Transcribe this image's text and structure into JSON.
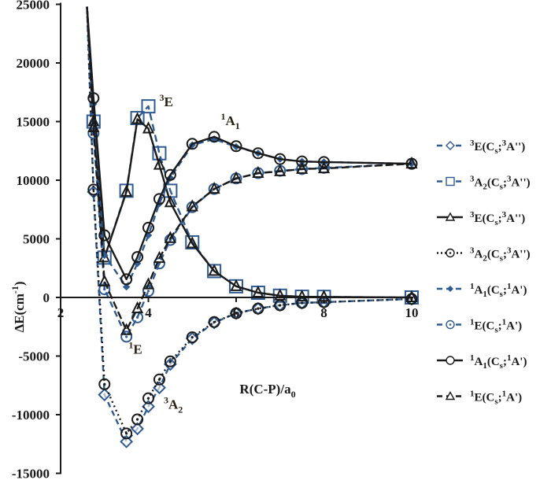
{
  "chart_data": {
    "type": "line",
    "title": "",
    "xlabel": "R(C-P)/a0",
    "ylabel": "ΔE(cm-1)",
    "xlim": [
      2,
      10
    ],
    "ylim": [
      -15000,
      25000
    ],
    "x_ticks": [
      2,
      4,
      6,
      8,
      10
    ],
    "y_ticks": [
      25000,
      20000,
      15000,
      10000,
      5000,
      0,
      -5000,
      -10000,
      -15000
    ],
    "grid": false,
    "legend_position": "right",
    "annotations": [
      {
        "text": "3E",
        "sup": "3",
        "main": "E",
        "sub": "",
        "x": 4.25,
        "y": 16300
      },
      {
        "text": "1A1",
        "sup": "1",
        "main": "A",
        "sub": "1",
        "x": 5.65,
        "y": 14700
      },
      {
        "text": "1E",
        "sup": "1",
        "main": "E",
        "sub": "",
        "x": 3.55,
        "y": -4800
      },
      {
        "text": "3A2",
        "sup": "3",
        "main": "A",
        "sub": "2",
        "x": 4.35,
        "y": -9500
      }
    ],
    "series": [
      {
        "name": "3E(Cs;3A'')",
        "label_sup": "3",
        "label_main": "E",
        "label_sub": "",
        "sym": "Cs;",
        "sym_sup": "3",
        "sym_rest": "A'')",
        "color": "#2f5b93",
        "dash": "7,5",
        "marker": "diamond-open",
        "x": [
          2.6,
          2.75,
          3.0,
          3.5,
          3.75,
          4.0,
          4.25,
          4.5,
          5.0,
          5.5,
          6.0,
          6.5,
          7.0,
          7.5,
          8.0,
          10.0
        ],
        "y": [
          24800,
          9000,
          -8300,
          -12300,
          -11200,
          -9300,
          -7700,
          -5700,
          -3500,
          -2150,
          -1350,
          -950,
          -650,
          -470,
          -400,
          -130
        ]
      },
      {
        "name": "3A2(Cs;3A'')",
        "label_sup": "3",
        "label_main": "A",
        "label_sub": "2",
        "sym": "Cs;",
        "sym_sup": "3",
        "sym_rest": "A'')",
        "color": "#2f5b93",
        "dash": "9,5",
        "marker": "square-open",
        "x": [
          2.6,
          2.75,
          3.0,
          3.5,
          3.75,
          4.0,
          4.25,
          4.5,
          5.0,
          5.5,
          6.0,
          6.5,
          7.0,
          7.5,
          8.0,
          10.0
        ],
        "y": [
          24800,
          15000,
          3400,
          9100,
          15300,
          16300,
          12300,
          9100,
          4700,
          2250,
          950,
          400,
          150,
          60,
          50,
          0
        ]
      },
      {
        "name": "3E(Cs;3A'')",
        "label_sup": "3",
        "label_main": "E",
        "label_sub": "",
        "sym": "Cs;",
        "sym_sup": "3",
        "sym_rest": "A'')",
        "color": "#1a1a1a",
        "dash": "",
        "marker": "triangle-open",
        "x": [
          2.6,
          2.75,
          3.0,
          3.5,
          3.75,
          4.0,
          4.25,
          4.5,
          5.0,
          5.5,
          6.0,
          6.5,
          7.0,
          7.5,
          8.0,
          10.0
        ],
        "y": [
          24800,
          15000,
          3400,
          9000,
          15200,
          14400,
          11300,
          8100,
          4600,
          2250,
          950,
          400,
          150,
          60,
          50,
          0
        ]
      },
      {
        "name": "3A2(Cs;3A'')",
        "label_sup": "3",
        "label_main": "A",
        "label_sub": "2",
        "sym": "Cs;",
        "sym_sup": "3",
        "sym_rest": "A'')",
        "color": "#1a1a1a",
        "dash": "2,4",
        "marker": "circle-dot",
        "x": [
          2.6,
          2.75,
          3.0,
          3.5,
          3.75,
          4.0,
          4.25,
          4.5,
          5.0,
          5.5,
          6.0,
          6.5,
          7.0,
          7.5,
          8.0,
          10.0
        ],
        "y": [
          24800,
          9200,
          -7400,
          -11600,
          -10400,
          -8600,
          -7000,
          -5450,
          -3400,
          -2100,
          -1350,
          -950,
          -670,
          -470,
          -400,
          -130
        ]
      },
      {
        "name": "1A1(Cs;1A')",
        "label_sup": "1",
        "label_main": "A",
        "label_sub": "1",
        "sym": "Cs;",
        "sym_sup": "1",
        "sym_rest": "A')",
        "color": "#2f5b93",
        "dash": "8,5",
        "marker": "diamond-small",
        "x": [
          2.6,
          2.75,
          3.0,
          3.5,
          3.75,
          4.0,
          4.25,
          4.5,
          5.0,
          5.5,
          6.0,
          6.5,
          7.0,
          7.5,
          8.0,
          10.0
        ],
        "y": [
          24800,
          16500,
          3600,
          900,
          2900,
          5300,
          8000,
          10200,
          13000,
          13500,
          12850,
          12300,
          11800,
          11600,
          11550,
          11400
        ]
      },
      {
        "name": "1E(Cs;1A')",
        "label_sup": "1",
        "label_main": "E",
        "label_sub": "",
        "sym": "Cs;",
        "sym_sup": "1",
        "sym_rest": "A')",
        "color": "#2f5b93",
        "dash": "8,5",
        "marker": "circle-dot",
        "x": [
          2.6,
          2.75,
          3.0,
          3.5,
          3.75,
          4.0,
          4.25,
          4.5,
          5.0,
          5.5,
          6.0,
          6.5,
          7.0,
          7.5,
          8.0,
          10.0
        ],
        "y": [
          24800,
          14000,
          700,
          -3350,
          -1700,
          550,
          2900,
          4900,
          7700,
          9250,
          10150,
          10600,
          10800,
          10950,
          11050,
          11400
        ]
      },
      {
        "name": "1A1(Cs;1A')",
        "label_sup": "1",
        "label_main": "A",
        "label_sub": "1",
        "sym": "Cs;",
        "sym_sup": "1",
        "sym_rest": "A')",
        "color": "#1a1a1a",
        "dash": "",
        "marker": "circle-open",
        "x": [
          2.6,
          2.75,
          3.0,
          3.5,
          3.75,
          4.0,
          4.25,
          4.5,
          5.0,
          5.5,
          6.0,
          6.5,
          7.0,
          7.5,
          8.0,
          10.0
        ],
        "y": [
          24800,
          17000,
          5300,
          1550,
          3450,
          5950,
          8400,
          10450,
          13100,
          13700,
          12900,
          12300,
          11800,
          11600,
          11550,
          11400
        ]
      },
      {
        "name": "1E(Cs;1A')",
        "label_sup": "1",
        "label_main": "E",
        "label_sub": "",
        "sym": "Cs;",
        "sym_sup": "1",
        "sym_rest": "A')",
        "color": "#1a1a1a",
        "dash": "10,4",
        "marker": "triangle-open",
        "x": [
          2.6,
          2.75,
          3.0,
          3.5,
          3.75,
          4.0,
          4.25,
          4.5,
          5.0,
          5.5,
          6.0,
          6.5,
          7.0,
          7.5,
          8.0,
          10.0
        ],
        "y": [
          24800,
          14500,
          1350,
          -2800,
          -950,
          1100,
          3350,
          5050,
          7750,
          9250,
          10150,
          10600,
          10750,
          10950,
          11000,
          11400
        ]
      }
    ]
  }
}
